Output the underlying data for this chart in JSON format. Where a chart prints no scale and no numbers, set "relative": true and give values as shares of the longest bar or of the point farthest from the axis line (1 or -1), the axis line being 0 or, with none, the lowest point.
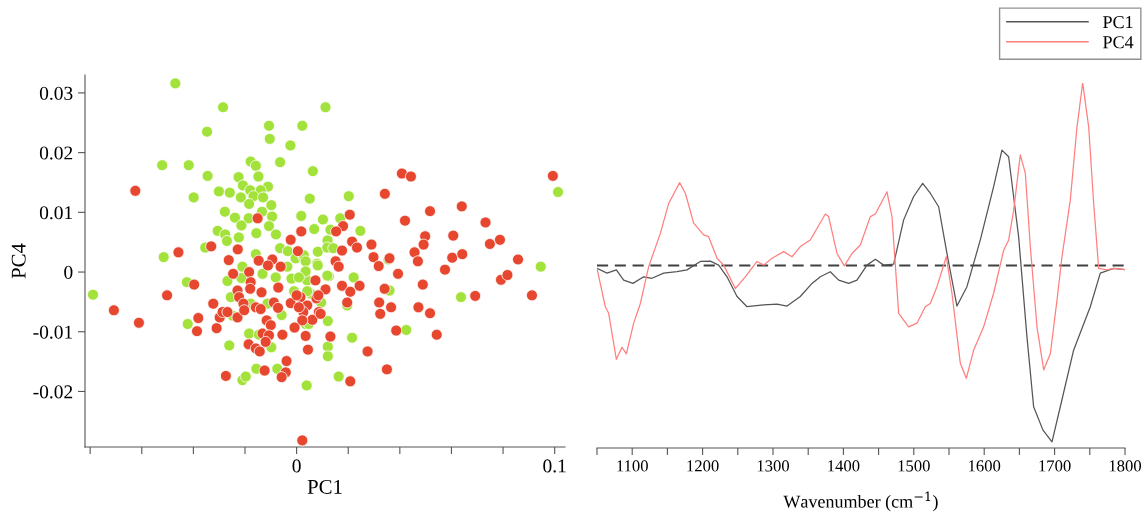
{
  "chart_data": [
    {
      "type": "scatter",
      "xlabel": "PC1",
      "ylabel": "PC4",
      "marker": "circle",
      "grid": false,
      "xlim": [
        -0.082,
        0.104
      ],
      "ylim": [
        -0.0293,
        0.033
      ],
      "xticks": [
        {
          "value": -0.08,
          "label": null
        },
        {
          "value": -0.06,
          "label": null
        },
        {
          "value": -0.04,
          "label": null
        },
        {
          "value": -0.02,
          "label": null
        },
        0,
        {
          "value": 0.02,
          "label": null
        },
        {
          "value": 0.04,
          "label": null
        },
        {
          "value": 0.06,
          "label": null
        },
        {
          "value": 0.08,
          "label": null
        },
        0.1
      ],
      "yticks": [
        -0.02,
        -0.01,
        0,
        0.01,
        0.02,
        0.03
      ],
      "series": [
        {
          "color": "#a3e23a",
          "x": [
            -0.047,
            -0.0285,
            0.0112,
            -0.0107,
            0.0022,
            -0.0347,
            -0.0104,
            -0.0024,
            -0.0521,
            -0.0418,
            -0.0178,
            -0.0158,
            -0.0064,
            0.0063,
            -0.0345,
            -0.0225,
            -0.0148,
            -0.0208,
            -0.0111,
            -0.0301,
            -0.0259,
            -0.018,
            -0.0139,
            -0.0399,
            -0.0216,
            -0.0167,
            -0.013,
            0.0051,
            -0.0184,
            -0.0098,
            -0.0278,
            -0.0134,
            -0.0239,
            -0.0186,
            -0.0095,
            0.0018,
            0.0102,
            -0.0306,
            -0.0214,
            -0.0107,
            0.0068,
            -0.0277,
            -0.0156,
            -0.008,
            -0.0224,
            -0.027,
            -0.0354,
            -0.0064,
            -0.0034,
            0.0082,
            -0.0515,
            -0.0158,
            -0.0004,
            0.0026,
            0.012,
            0.0202,
            0.0169,
            0.0131,
            0.0247,
            0.0119,
            0.0142,
            0.0028,
            0.0035,
            0.008,
            0.1013,
            0.0946,
            0.0356,
            0.0637,
            0.0425,
            0.0215,
            0.0121,
            0.0121,
            0.0121,
            0.0163,
            0.0039,
            0.0125,
            0.0221,
            0.036,
            0.0095,
            0.0196,
            0.0035,
            0.0041,
            0.0035,
            0.0054,
            -0.0789,
            -0.0425,
            -0.0422,
            -0.0261,
            -0.021,
            -0.0197,
            -0.0156,
            -0.0075,
            -0.0184,
            -0.0146,
            -0.0098,
            -0.0058,
            -0.021,
            -0.0268,
            -0.0214,
            -0.0132,
            -0.0081,
            -0.002,
            0.0009,
            -0.001,
            -0.0178,
            -0.0113,
            -0.0248,
            -0.0255,
            -0.0036,
            0.0082,
            0.0119,
            0.0041,
            0.0047
          ],
          "values": [
            0.0316,
            0.0276,
            0.0276,
            0.0245,
            0.0245,
            0.0235,
            0.0223,
            0.0212,
            0.0179,
            0.0179,
            0.0185,
            0.0178,
            0.0184,
            0.0169,
            0.0161,
            0.0159,
            0.016,
            0.0145,
            0.0143,
            0.0135,
            0.0133,
            0.0137,
            0.0137,
            0.0125,
            0.0125,
            0.0127,
            0.0125,
            0.0123,
            0.0114,
            0.0112,
            0.0101,
            0.0101,
            0.0091,
            0.009,
            0.0093,
            0.0094,
            0.0088,
            0.0069,
            0.0078,
            0.0077,
            0.0072,
            0.0063,
            0.0065,
            0.0063,
            0.0058,
            0.0052,
            0.0041,
            0.004,
            0.0035,
            0.0034,
            0.0025,
            0.003,
            0.0023,
            0.0025,
            0.0053,
            0.0127,
            0.009,
            0.0071,
            0.0069,
            0.0041,
            0.004,
            0.0028,
            0.0018,
            0.0014,
            0.0134,
            0.0009,
            0.0021,
            -0.0042,
            -0.0097,
            -0.011,
            -0.0082,
            -0.0125,
            -0.0141,
            -0.0175,
            -0.019,
            -0.0007,
            -0.0009,
            -0.0031,
            -0.0051,
            -0.0056,
            -0.0087,
            -0.0014,
            0.0001,
            -0.0036,
            -0.0038,
            -0.0017,
            -0.0087,
            -0.0123,
            -0.0181,
            -0.0175,
            -0.0162,
            -0.0162,
            -0.0103,
            -0.0105,
            -0.0126,
            -0.0072,
            0.0009,
            -0.0015,
            -0.001,
            -0.0003,
            -0.0009,
            -0.0011,
            -0.0009,
            -0.0032,
            -0.0053,
            -0.0053,
            -0.0073,
            -0.0042,
            0.0009,
            0.0011,
            -0.0006,
            -0.0032,
            -0.0087
          ]
        },
        {
          "color": "#e8472f",
          "x": [
            -0.0625,
            -0.0151,
            0.0018,
            -0.0331,
            -0.0458,
            -0.0228,
            -0.0023,
            0.0005,
            -0.0263,
            -0.0147,
            -0.0094,
            -0.0111,
            -0.0062,
            0.0408,
            0.0443,
            0.0993,
            0.0342,
            0.0206,
            0.0517,
            0.064,
            0.042,
            0.018,
            0.0153,
            0.0732,
            0.0498,
            0.0607,
            0.0215,
            0.0234,
            0.029,
            0.0492,
            0.0749,
            0.0788,
            0.0176,
            0.0457,
            0.0298,
            0.036,
            0.047,
            0.0603,
            0.0642,
            0.0858,
            0.0151,
            0.0163,
            0.0318,
            0.0575,
            0.0393,
            0.0489,
            0.0792,
            0.0817,
            0.0692,
            0.0912,
            0.0176,
            0.0208,
            0.0244,
            0.0341,
            0.0073,
            0.0112,
            0.0077,
            0.0196,
            0.032,
            0.0324,
            0.0366,
            0.0472,
            0.0517,
            0.0041,
            0.0026,
            0.0086,
            0.0061,
            0.0022,
            0.0386,
            0.0543,
            0.0035,
            0.0131,
            0.0044,
            0.0275,
            0.035,
            0.0208,
            0.0022,
            0.0015,
            -0.0397,
            -0.0502,
            -0.0708,
            -0.0611,
            -0.0381,
            -0.0386,
            -0.031,
            -0.0323,
            -0.0298,
            -0.0287,
            -0.0268,
            -0.0246,
            -0.0229,
            -0.0223,
            -0.0206,
            -0.0229,
            -0.0184,
            -0.0178,
            -0.018,
            -0.0136,
            -0.0158,
            -0.0139,
            -0.0203,
            -0.0116,
            -0.01,
            -0.0132,
            -0.0107,
            -0.012,
            -0.0186,
            -0.0158,
            -0.0143,
            -0.0055,
            -0.0071,
            -0.0088,
            -0.0072,
            -0.0023,
            0.0,
            0.0009,
            -0.0008,
            0.0084,
            0.0093,
            -0.0039,
            -0.0042,
            -0.0058,
            -0.0124,
            -0.0274
          ],
          "values": [
            0.0136,
            0.009,
            0.0068,
            0.0043,
            0.0033,
            0.0038,
            0.0054,
            0.0035,
            0.002,
            0.0019,
            0.0021,
            0.0011,
            0.0009,
            0.0165,
            0.016,
            0.0161,
            0.0131,
            0.0096,
            0.0102,
            0.011,
            0.0086,
            0.0077,
            0.0068,
            0.0083,
            0.006,
            0.0061,
            0.0051,
            0.0041,
            0.0046,
            0.0046,
            0.0047,
            0.0054,
            0.0036,
            0.0033,
            0.0025,
            0.0023,
            0.0018,
            0.0024,
            0.003,
            0.0021,
            0.0018,
            0.0009,
            0.001,
            0.0004,
            -0.0003,
            -0.0021,
            -0.0013,
            -0.0005,
            -0.004,
            -0.0039,
            -0.0023,
            -0.0033,
            -0.0023,
            -0.0028,
            -0.0014,
            -0.0029,
            -0.0044,
            -0.0051,
            -0.0051,
            -0.007,
            -0.0059,
            -0.0059,
            -0.0069,
            -0.0056,
            -0.0067,
            -0.0067,
            -0.008,
            -0.0081,
            -0.0098,
            -0.0105,
            -0.0107,
            -0.0108,
            -0.013,
            -0.0133,
            -0.0163,
            -0.0183,
            -0.0282,
            -0.0042,
            -0.0021,
            -0.0039,
            -0.0064,
            -0.0085,
            -0.0077,
            -0.0099,
            -0.0094,
            -0.0053,
            -0.0076,
            -0.0067,
            -0.0067,
            -0.0003,
            -0.0031,
            -0.0042,
            -0.0053,
            -0.0076,
            0.0,
            -0.0017,
            -0.0028,
            -0.0034,
            -0.0059,
            -0.0062,
            -0.0064,
            -0.0081,
            -0.0089,
            -0.0103,
            -0.0106,
            -0.0117,
            -0.0121,
            -0.0128,
            -0.0133,
            -0.0105,
            -0.0026,
            -0.0051,
            -0.006,
            -0.0052,
            -0.0039,
            -0.0059,
            -0.0093,
            -0.0039,
            -0.007,
            -0.0149,
            -0.0168,
            -0.0176,
            -0.0165,
            -0.0174
          ]
        }
      ]
    },
    {
      "type": "line",
      "xlabel": "Wavenumber (cm$^{−1}$)",
      "relative": true,
      "legend": "top right",
      "line_style": "solid",
      "marker": "none",
      "grid": false,
      "xlim": [
        1050,
        1800
      ],
      "xticks": [
        {
          "value": 1050,
          "label": null
        },
        1100,
        {
          "value": 1150,
          "label": null
        },
        1200,
        {
          "value": 1250,
          "label": null
        },
        1300,
        {
          "value": 1350,
          "label": null
        },
        1400,
        {
          "value": 1450,
          "label": null
        },
        1500,
        {
          "value": 1550,
          "label": null
        },
        1600,
        {
          "value": 1650,
          "label": null
        },
        1700,
        {
          "value": 1750,
          "label": null
        },
        1800
      ],
      "ref_lines": [
        {
          "axis": "y",
          "value": 0.5,
          "color": "#404040",
          "line_style": "dashed"
        }
      ],
      "series": [
        {
          "name": "PC1",
          "color": "#555555",
          "x": [
            1050,
            1064.2,
            1077.5,
            1087.9,
            1101.1,
            1116.3,
            1128.1,
            1144.7,
            1163.6,
            1177.8,
            1196.8,
            1211,
            1222.8,
            1234.7,
            1248.9,
            1263.1,
            1286.7,
            1305.7,
            1319.9,
            1338.8,
            1355.4,
            1367.2,
            1381.4,
            1393.3,
            1407.5,
            1419.3,
            1433.5,
            1445.4,
            1457.2,
            1471.4,
            1485.6,
            1499.8,
            1512.6,
            1523.4,
            1535.3,
            1547.1,
            1561.3,
            1575.5,
            1594.5,
            1613.4,
            1625.2,
            1634.7,
            1648.9,
            1660.7,
            1670.2,
            1683.5,
            1696.3,
            1708.1,
            1727,
            1750.7,
            1764.9,
            1783.9,
            1800
          ],
          "values": [
            0.492,
            0.479,
            0.488,
            0.46,
            0.451,
            0.469,
            0.465,
            0.479,
            0.483,
            0.488,
            0.511,
            0.512,
            0.501,
            0.469,
            0.415,
            0.387,
            0.392,
            0.394,
            0.389,
            0.415,
            0.451,
            0.469,
            0.483,
            0.46,
            0.451,
            0.46,
            0.501,
            0.517,
            0.501,
            0.504,
            0.625,
            0.689,
            0.725,
            0.698,
            0.661,
            0.533,
            0.389,
            0.442,
            0.57,
            0.716,
            0.816,
            0.798,
            0.579,
            0.305,
            0.113,
            0.049,
            0.017,
            0.113,
            0.268,
            0.387,
            0.479,
            0.492,
            0.489
          ]
        },
        {
          "name": "PC4",
          "color": "#ff7f7f",
          "x": [
            1050,
            1061.8,
            1066.6,
            1077.5,
            1085.5,
            1091.7,
            1102.1,
            1111.6,
            1123.4,
            1140,
            1151.8,
            1167.4,
            1175.5,
            1187.3,
            1201.5,
            1208.6,
            1220.5,
            1229.9,
            1246.5,
            1260.7,
            1277.3,
            1286.7,
            1298.6,
            1315.2,
            1327,
            1338.8,
            1353,
            1374.3,
            1379,
            1390.9,
            1401.3,
            1412.2,
            1424,
            1438.3,
            1445.4,
            1461.9,
            1469,
            1478.5,
            1492.7,
            1504.5,
            1516.3,
            1523.4,
            1532.9,
            1546.2,
            1554.2,
            1566.1,
            1574.6,
            1585,
            1599.2,
            1613.4,
            1627.7,
            1634.8,
            1641.9,
            1651.3,
            1658.4,
            1665.5,
            1675,
            1684.5,
            1694,
            1703.4,
            1710.5,
            1722.3,
            1731.8,
            1739.9,
            1748.4,
            1755.5,
            1762.6,
            1774.4,
            1783.9,
            1800
          ],
          "values": [
            0.492,
            0.387,
            0.369,
            0.243,
            0.276,
            0.258,
            0.342,
            0.396,
            0.497,
            0.588,
            0.67,
            0.727,
            0.698,
            0.616,
            0.584,
            0.579,
            0.52,
            0.501,
            0.437,
            0.469,
            0.511,
            0.501,
            0.52,
            0.538,
            0.524,
            0.552,
            0.57,
            0.641,
            0.634,
            0.533,
            0.499,
            0.533,
            0.556,
            0.634,
            0.641,
            0.702,
            0.634,
            0.369,
            0.332,
            0.342,
            0.387,
            0.396,
            0.442,
            0.524,
            0.424,
            0.232,
            0.191,
            0.268,
            0.332,
            0.424,
            0.542,
            0.57,
            0.652,
            0.803,
            0.753,
            0.552,
            0.332,
            0.214,
            0.259,
            0.405,
            0.524,
            0.679,
            0.88,
            1.0,
            0.88,
            0.67,
            0.492,
            0.488,
            0.492,
            0.489
          ]
        }
      ]
    }
  ]
}
